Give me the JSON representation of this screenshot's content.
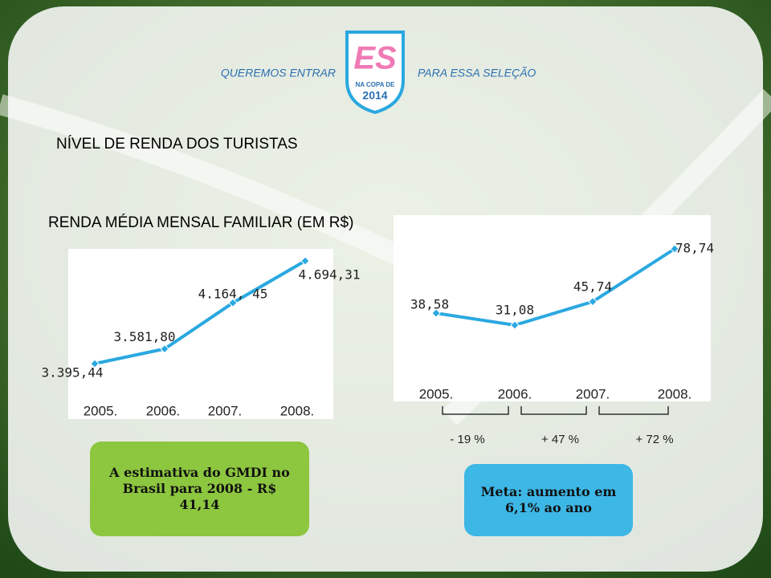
{
  "header": {
    "left": "QUEREMOS ENTRAR",
    "right": "PARA ESSA SELEÇÃO",
    "logo": {
      "letters": "ES",
      "line1": "NA COPA DE",
      "line2": "2014"
    }
  },
  "title": "NÍVEL DE RENDA DOS TURISTAS",
  "subtitle": "RENDA MÉDIA MENSAL FAMILIAR (EM R$)",
  "chart_data": [
    {
      "type": "line",
      "categories": [
        "2005.",
        "2006.",
        "2007.",
        "2008."
      ],
      "values": [
        3395.44,
        3581.8,
        4164.45,
        4694.31
      ],
      "value_labels": [
        "3.395,44",
        "3.581,80",
        "4.164, 45",
        "4.694,31"
      ],
      "color": "#2aa8e0"
    },
    {
      "type": "line",
      "categories": [
        "2005.",
        "2006.",
        "2007.",
        "2008."
      ],
      "values": [
        38.58,
        31.08,
        45.74,
        78.74
      ],
      "value_labels": [
        "38,58",
        "31,08",
        "45,74",
        "78,74"
      ],
      "color": "#2aa8e0",
      "annotations": [
        "- 19 %",
        "+ 47 %",
        "+ 72 %"
      ]
    }
  ],
  "boxes": [
    "A estimativa do GMDI no Brasil para 2008 - R$ 41,14",
    "Meta: aumento em 6,1% ao ano"
  ]
}
